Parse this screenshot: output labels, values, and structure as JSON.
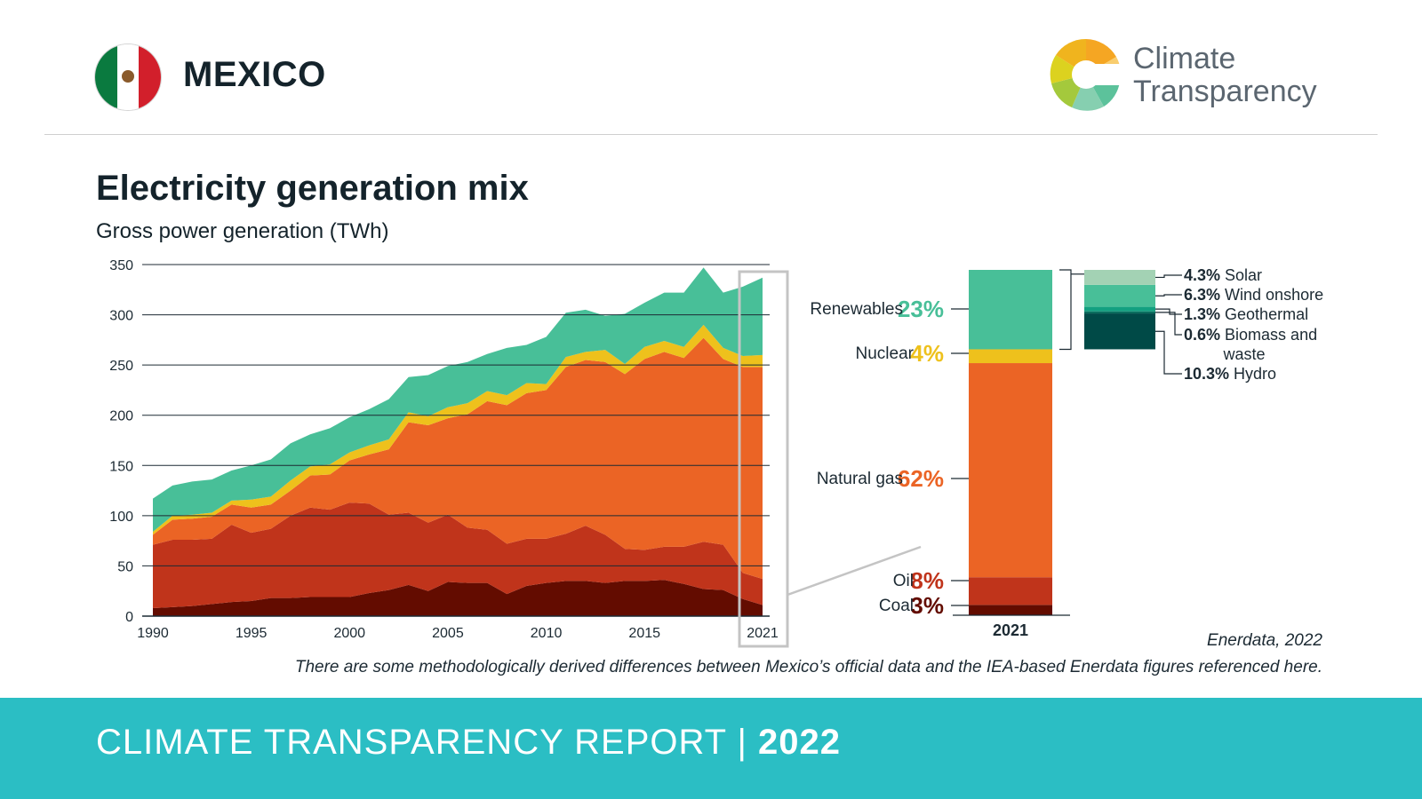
{
  "header": {
    "country": "MEXICO",
    "logo_line1": "Climate",
    "logo_line2": "Transparency"
  },
  "title": "Electricity generation mix",
  "subtitle": "Gross power generation (TWh)",
  "source": "Enerdata, 2022",
  "note": "There are some methodologically derived differences between Mexico’s official data and the IEA-based Enerdata figures referenced here.",
  "footer": {
    "label": "CLIMATE TRANSPARENCY REPORT",
    "separator": "|",
    "year": "2022"
  },
  "colors": {
    "coal": "#630c00",
    "oil": "#c0341b",
    "gas": "#eb6425",
    "nuclear": "#eec11c",
    "renewables": "#48bf98",
    "solar": "#a3d2b4",
    "wind": "#48bf98",
    "geothermal": "#13a080",
    "biomass": "#0a6e5e",
    "hydro": "#004a47",
    "footer": "#2bbec4"
  },
  "chart_data": [
    {
      "type": "area",
      "stacked": true,
      "x": [
        1990,
        1991,
        1992,
        1993,
        1994,
        1995,
        1996,
        1997,
        1998,
        1999,
        2000,
        2001,
        2002,
        2003,
        2004,
        2005,
        2006,
        2007,
        2008,
        2009,
        2010,
        2011,
        2012,
        2013,
        2014,
        2015,
        2016,
        2017,
        2018,
        2019,
        2020,
        2021
      ],
      "x_ticks": [
        "1990",
        "1995",
        "2000",
        "2005",
        "2010",
        "2015",
        "2021"
      ],
      "y_ticks": [
        "0",
        "50",
        "100",
        "150",
        "200",
        "250",
        "300",
        "350"
      ],
      "ylim": [
        0,
        350
      ],
      "grid": true,
      "highlight": "2021",
      "series": [
        {
          "key": "coal",
          "values": [
            8,
            9,
            10,
            12,
            14,
            15,
            18,
            18,
            19,
            19,
            19,
            23,
            26,
            31,
            25,
            34,
            33,
            33,
            22,
            30,
            33,
            35,
            35,
            33,
            35,
            35,
            36,
            32,
            27,
            26,
            17,
            11
          ]
        },
        {
          "key": "oil",
          "values": [
            63,
            67,
            66,
            65,
            77,
            68,
            69,
            82,
            89,
            87,
            94,
            89,
            75,
            72,
            68,
            67,
            55,
            53,
            50,
            47,
            44,
            47,
            55,
            48,
            32,
            31,
            33,
            37,
            47,
            45,
            26,
            26
          ]
        },
        {
          "key": "gas",
          "values": [
            10,
            20,
            21,
            22,
            20,
            25,
            24,
            25,
            32,
            35,
            42,
            49,
            65,
            90,
            97,
            96,
            113,
            128,
            138,
            145,
            148,
            166,
            165,
            172,
            174,
            190,
            194,
            188,
            203,
            185,
            205,
            211
          ]
        },
        {
          "key": "nuclear",
          "values": [
            3,
            4,
            4,
            4,
            4,
            8,
            8,
            10,
            9,
            10,
            8,
            9,
            10,
            10,
            9,
            11,
            11,
            10,
            10,
            10,
            6,
            10,
            8,
            12,
            10,
            12,
            11,
            11,
            13,
            11,
            11,
            12
          ]
        },
        {
          "key": "renewables",
          "values": [
            33,
            30,
            33,
            33,
            30,
            34,
            37,
            37,
            32,
            36,
            35,
            36,
            40,
            35,
            41,
            41,
            41,
            37,
            47,
            38,
            47,
            44,
            42,
            34,
            50,
            44,
            48,
            54,
            57,
            55,
            69,
            77
          ]
        }
      ]
    },
    {
      "type": "bar",
      "stacked": true,
      "categories": [
        "2021"
      ],
      "segments": [
        {
          "key": "coal",
          "label": "Coal",
          "share": "3%"
        },
        {
          "key": "oil",
          "label": "Oil",
          "share": "8%"
        },
        {
          "key": "gas",
          "label": "Natural gas",
          "share": "62%"
        },
        {
          "key": "nuclear",
          "label": "Nuclear",
          "share": "4%"
        },
        {
          "key": "renewables",
          "label": "Renewables",
          "share": "23%"
        }
      ],
      "renewables_breakdown": [
        {
          "key": "hydro",
          "pct": "10.3%",
          "label": "Hydro",
          "value": 10.3
        },
        {
          "key": "biomass",
          "pct": "0.6%",
          "label": "Biomass and",
          "label2": "waste",
          "value": 0.6
        },
        {
          "key": "geothermal",
          "pct": "1.3%",
          "label": "Geothermal",
          "value": 1.3
        },
        {
          "key": "wind",
          "pct": "6.3%",
          "label": "Wind onshore",
          "value": 6.3
        },
        {
          "key": "solar",
          "pct": "4.3%",
          "label": "Solar",
          "value": 4.3
        }
      ]
    }
  ]
}
